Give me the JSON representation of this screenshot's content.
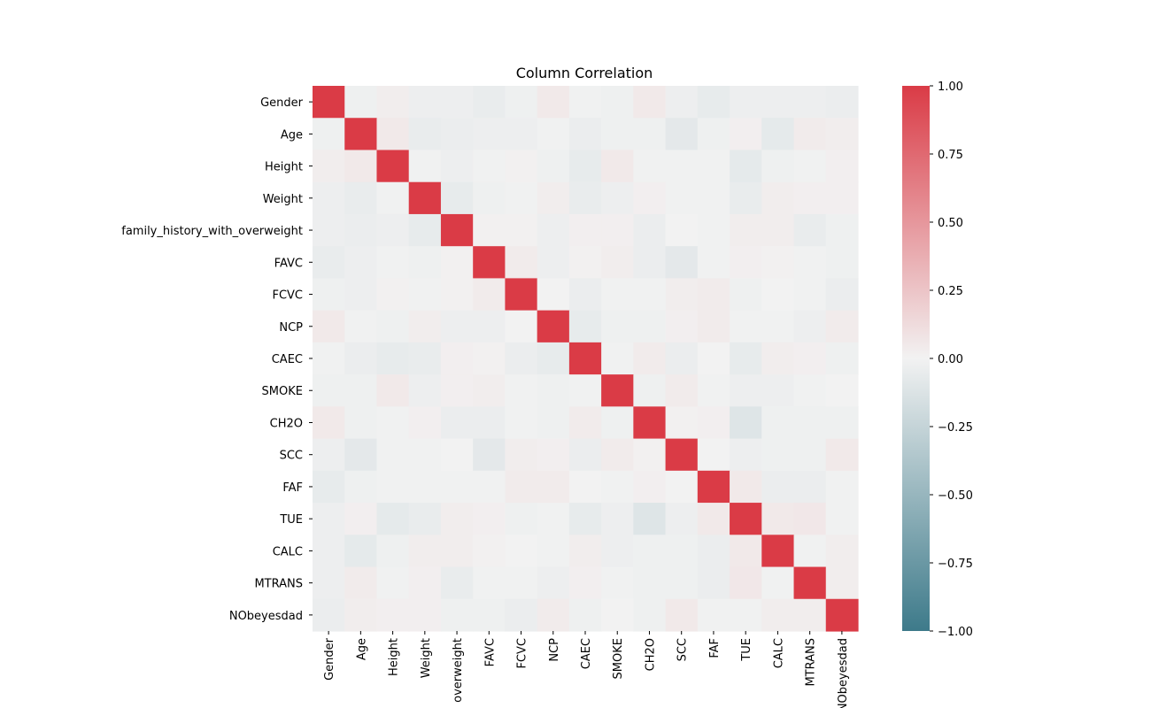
{
  "chart_data": {
    "type": "heatmap",
    "title": "Column Correlation",
    "row_labels": [
      "Gender",
      "Age",
      "Height",
      "Weight",
      "family_history_with_overweight",
      "FAVC",
      "FCVC",
      "NCP",
      "CAEC",
      "SMOKE",
      "CH2O",
      "SCC",
      "FAF",
      "TUE",
      "CALC",
      "MTRANS",
      "NObeyesdad"
    ],
    "col_labels": [
      "Gender",
      "Age",
      "Height",
      "Weight",
      "overweight",
      "FAVC",
      "FCVC",
      "NCP",
      "CAEC",
      "SMOKE",
      "CH2O",
      "SCC",
      "FAF",
      "TUE",
      "CALC",
      "MTRANS",
      "NObeyesdad"
    ],
    "values": [
      [
        1.0,
        -0.02,
        0.03,
        -0.03,
        -0.03,
        -0.05,
        -0.02,
        0.05,
        -0.01,
        -0.02,
        0.05,
        -0.03,
        -0.06,
        -0.03,
        -0.03,
        -0.03,
        -0.04
      ],
      [
        -0.02,
        1.0,
        0.05,
        -0.05,
        -0.04,
        -0.03,
        -0.03,
        -0.01,
        -0.04,
        -0.02,
        -0.02,
        -0.08,
        -0.02,
        0.02,
        -0.07,
        0.04,
        0.03
      ],
      [
        0.03,
        0.05,
        1.0,
        -0.01,
        -0.03,
        -0.01,
        0.01,
        -0.02,
        -0.06,
        0.05,
        -0.01,
        -0.01,
        -0.01,
        -0.07,
        -0.02,
        -0.01,
        0.02
      ],
      [
        -0.03,
        -0.05,
        -0.01,
        1.0,
        -0.06,
        -0.02,
        -0.01,
        0.03,
        -0.05,
        -0.03,
        0.02,
        -0.01,
        -0.01,
        -0.05,
        0.03,
        0.02,
        0.02
      ],
      [
        -0.03,
        -0.04,
        -0.03,
        -0.06,
        1.0,
        0.01,
        0.01,
        -0.03,
        0.02,
        0.02,
        -0.04,
        0.0,
        -0.01,
        0.03,
        0.03,
        -0.05,
        -0.02
      ],
      [
        -0.05,
        -0.03,
        -0.01,
        -0.02,
        0.01,
        1.0,
        0.04,
        -0.03,
        0.01,
        0.03,
        -0.04,
        -0.08,
        -0.01,
        0.02,
        0.01,
        -0.01,
        -0.02
      ],
      [
        -0.02,
        -0.03,
        0.01,
        -0.01,
        0.01,
        0.04,
        1.0,
        0.0,
        -0.04,
        -0.01,
        -0.01,
        0.03,
        0.04,
        -0.02,
        0.0,
        -0.01,
        -0.04
      ],
      [
        0.05,
        -0.01,
        -0.02,
        0.03,
        -0.03,
        -0.03,
        0.0,
        1.0,
        -0.06,
        -0.02,
        -0.02,
        0.02,
        0.04,
        -0.01,
        -0.01,
        -0.03,
        0.04
      ],
      [
        -0.01,
        -0.04,
        -0.06,
        -0.05,
        0.02,
        0.01,
        -0.04,
        -0.06,
        1.0,
        -0.01,
        0.04,
        -0.04,
        0.0,
        -0.06,
        0.03,
        0.02,
        -0.02
      ],
      [
        -0.02,
        -0.02,
        0.05,
        -0.03,
        0.02,
        0.03,
        -0.01,
        -0.02,
        -0.01,
        1.0,
        -0.02,
        0.04,
        -0.01,
        -0.03,
        -0.03,
        -0.01,
        0.0
      ],
      [
        0.05,
        -0.02,
        -0.01,
        0.02,
        -0.04,
        -0.04,
        -0.01,
        -0.02,
        0.04,
        -0.02,
        1.0,
        0.01,
        0.02,
        -0.11,
        -0.02,
        -0.02,
        -0.02
      ],
      [
        -0.03,
        -0.08,
        -0.01,
        -0.01,
        0.0,
        -0.08,
        0.03,
        0.02,
        -0.04,
        0.04,
        0.01,
        1.0,
        0.0,
        -0.03,
        -0.02,
        -0.02,
        0.05
      ],
      [
        -0.06,
        -0.02,
        -0.01,
        -0.01,
        -0.01,
        -0.01,
        0.04,
        0.04,
        0.0,
        -0.01,
        0.02,
        0.0,
        1.0,
        0.05,
        -0.04,
        -0.04,
        -0.01
      ],
      [
        -0.03,
        0.02,
        -0.07,
        -0.05,
        0.03,
        0.02,
        -0.02,
        -0.01,
        -0.06,
        -0.03,
        -0.11,
        -0.03,
        0.05,
        1.0,
        0.05,
        0.06,
        -0.01
      ],
      [
        -0.03,
        -0.07,
        -0.02,
        0.03,
        0.03,
        0.01,
        0.0,
        -0.01,
        0.03,
        -0.03,
        -0.02,
        -0.02,
        -0.04,
        0.05,
        1.0,
        -0.01,
        0.03
      ],
      [
        -0.03,
        0.04,
        -0.01,
        0.02,
        -0.05,
        -0.01,
        -0.01,
        -0.03,
        0.02,
        -0.01,
        -0.02,
        -0.02,
        -0.04,
        0.06,
        -0.01,
        1.0,
        0.03
      ],
      [
        -0.04,
        0.03,
        0.02,
        0.02,
        -0.02,
        -0.02,
        -0.04,
        0.04,
        -0.02,
        0.0,
        -0.02,
        0.05,
        -0.01,
        -0.01,
        0.03,
        0.03,
        1.0
      ]
    ],
    "colorbar": {
      "range": [
        -1.0,
        1.0
      ],
      "tick_values": [
        1.0,
        0.75,
        0.5,
        0.25,
        0.0,
        -0.25,
        -0.5,
        -0.75,
        -1.0
      ],
      "tick_labels": [
        "1.00",
        "0.75",
        "0.50",
        "0.25",
        "0.00",
        "−0.25",
        "−0.50",
        "−0.75",
        "−1.00"
      ],
      "colormap": "diverging teal-to-red",
      "low_color": "#3d7a8a",
      "mid_color": "#f2f2f2",
      "high_color": "#da3b46"
    },
    "xlabel": "",
    "ylabel": ""
  }
}
